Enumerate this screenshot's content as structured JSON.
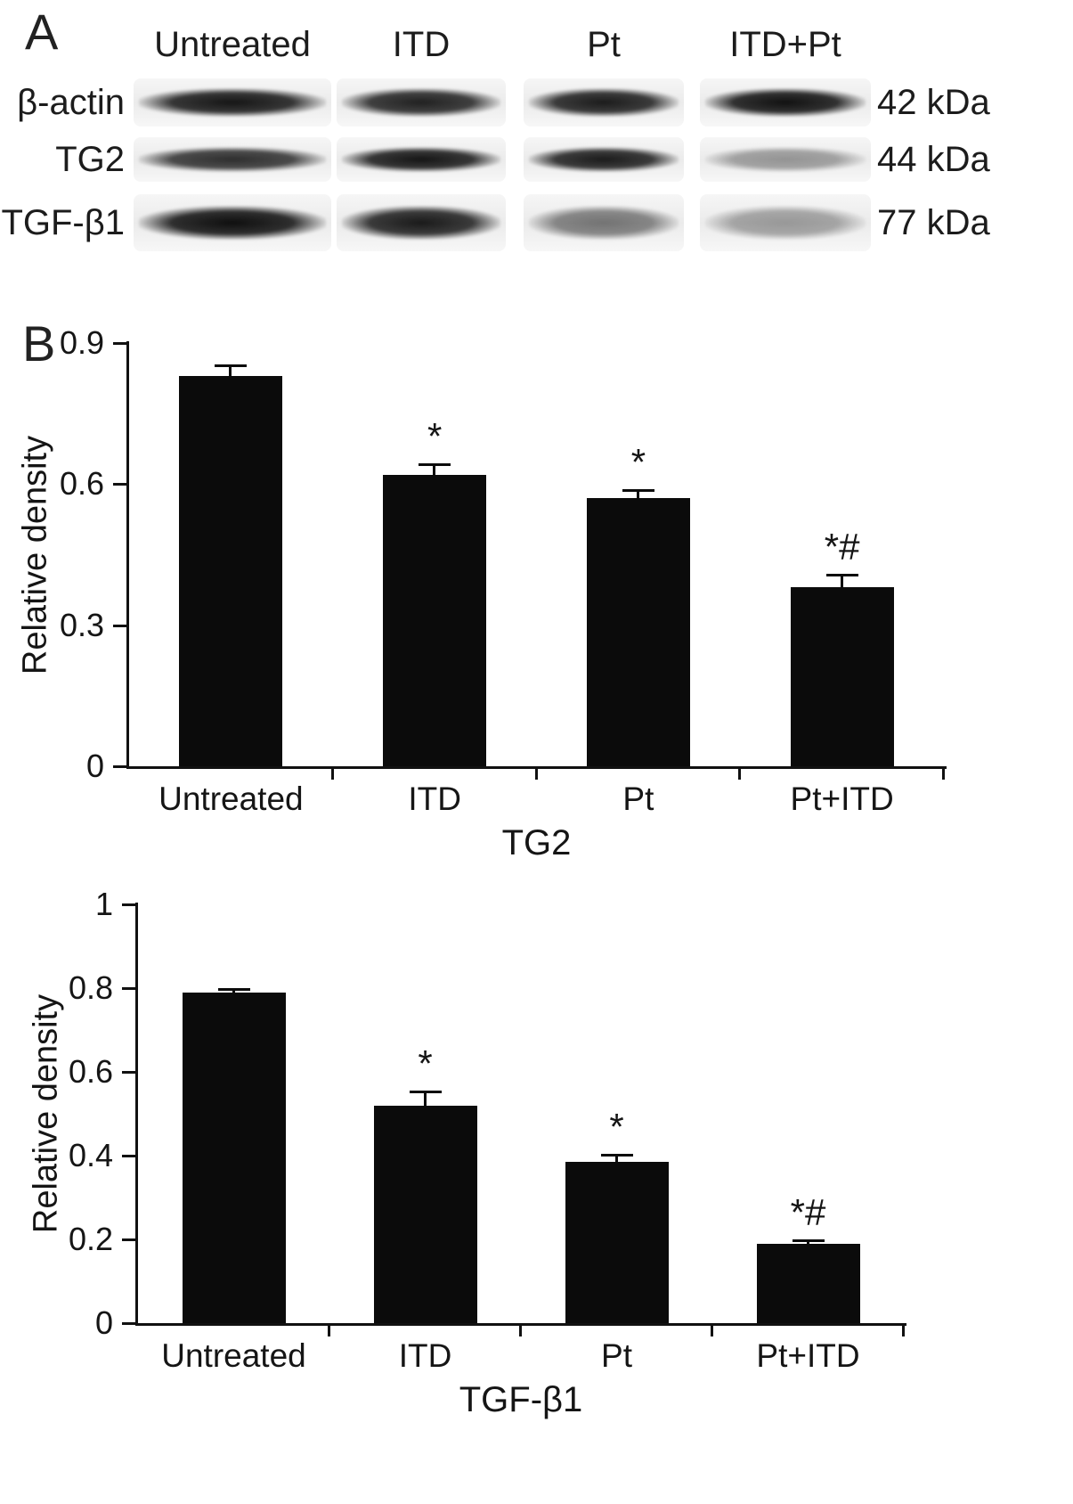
{
  "figure": {
    "panel_a_label": "A",
    "panel_b_label": "B"
  },
  "blot": {
    "lane_headers": [
      "Untreated",
      "ITD",
      "Pt",
      "ITD+Pt"
    ],
    "rows": [
      {
        "label": "β-actin",
        "kda": "42 kDa",
        "band_intensities": [
          0.93,
          0.88,
          0.9,
          0.95
        ]
      },
      {
        "label": "TG2",
        "kda": "44 kDa",
        "band_intensities": [
          0.82,
          0.93,
          0.9,
          0.38
        ]
      },
      {
        "label": "TGF-β1",
        "kda": "77 kDa",
        "band_intensities": [
          0.96,
          0.91,
          0.52,
          0.36
        ]
      }
    ]
  },
  "chart_data": [
    {
      "type": "bar",
      "title": "",
      "xlabel": "TG2",
      "ylabel": "Relative density",
      "ylim": [
        0,
        0.9
      ],
      "ytick_values": [
        0,
        0.3,
        0.6,
        0.9
      ],
      "ytick_labels": [
        "0",
        "0.3",
        "0.6",
        "0.9"
      ],
      "categories": [
        "Untreated",
        "ITD",
        "Pt",
        "Pt+ITD"
      ],
      "values": [
        0.83,
        0.62,
        0.57,
        0.38
      ],
      "errors": [
        0.025,
        0.025,
        0.02,
        0.03
      ],
      "annotations": [
        "",
        "*",
        "*",
        "*#"
      ],
      "bar_color": "#0b0b0b",
      "grid": false,
      "legend": "none"
    },
    {
      "type": "bar",
      "title": "",
      "xlabel": "TGF-β1",
      "ylabel": "Relative density",
      "ylim": [
        0,
        1
      ],
      "ytick_values": [
        0,
        0.2,
        0.4,
        0.6,
        0.8,
        1
      ],
      "ytick_labels": [
        "0",
        "0.2",
        "0.4",
        "0.6",
        "0.8",
        "1"
      ],
      "categories": [
        "Untreated",
        "ITD",
        "Pt",
        "Pt+ITD"
      ],
      "values": [
        0.79,
        0.52,
        0.385,
        0.19
      ],
      "errors": [
        0.01,
        0.035,
        0.02,
        0.01
      ],
      "annotations": [
        "",
        "*",
        "*",
        "*#"
      ],
      "bar_color": "#0b0b0b",
      "grid": false,
      "legend": "none"
    }
  ]
}
